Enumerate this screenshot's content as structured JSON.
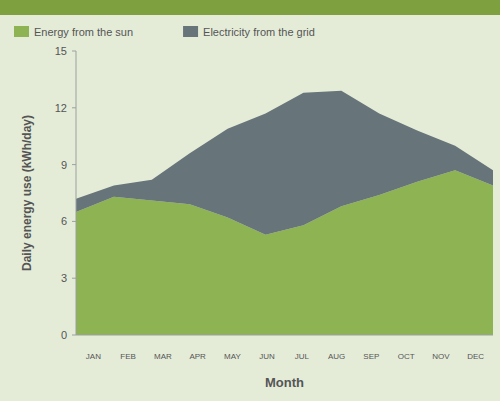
{
  "chart_data": {
    "type": "area",
    "stacked": true,
    "x_label": "Month",
    "y_label": "Daily energy use (kWh/day)",
    "categories": [
      "JAN",
      "FEB",
      "MAR",
      "APR",
      "MAY",
      "JUN",
      "JUL",
      "AUG",
      "SEP",
      "OCT",
      "NOV",
      "DEC"
    ],
    "series": [
      {
        "name": "Energy from the sun",
        "color": "#8db352",
        "values": [
          6.5,
          7.3,
          7.1,
          6.9,
          6.2,
          5.3,
          5.8,
          6.8,
          7.4,
          8.1,
          8.7,
          7.9
        ]
      },
      {
        "name": "Electricity from the grid",
        "color": "#67747a",
        "values": [
          0.7,
          0.6,
          1.1,
          2.7,
          4.7,
          6.4,
          7.0,
          6.1,
          4.3,
          2.7,
          1.3,
          0.8
        ]
      }
    ],
    "ylim": [
      0,
      15
    ],
    "yticks": [
      0,
      3,
      6,
      9,
      12,
      15
    ],
    "grid": false,
    "legend": "top"
  }
}
